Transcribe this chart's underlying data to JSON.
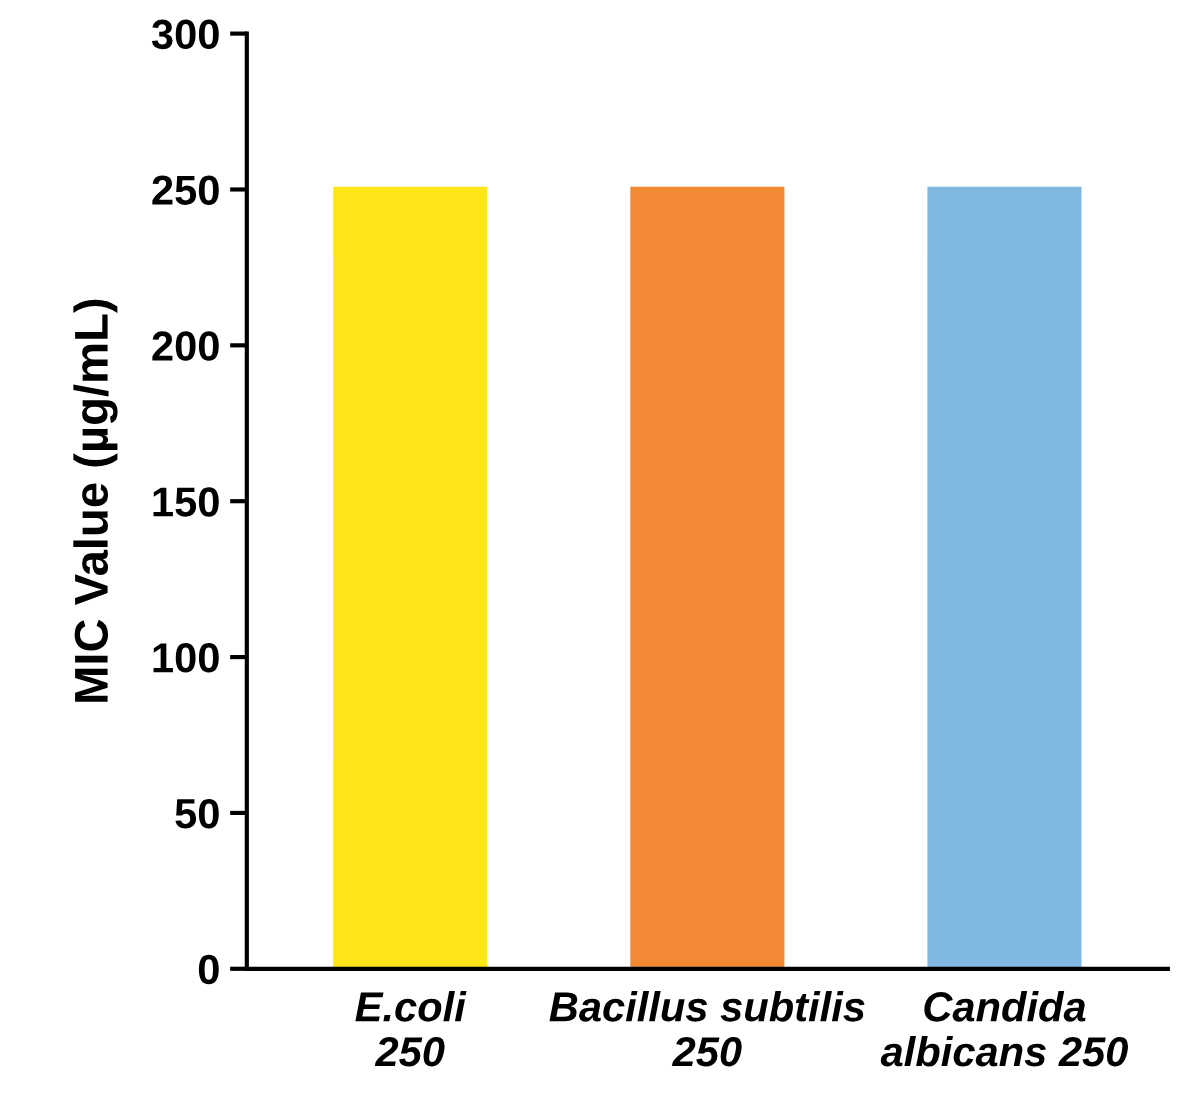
{
  "chart_data": {
    "type": "bar",
    "ylabel": "MIC Value (µg/mL)",
    "categories": [
      "E.coli\n250",
      "Bacillus subtilis\n250",
      "Candida\nalbicans 250"
    ],
    "values": [
      250,
      250,
      250
    ],
    "colors": [
      "#ffe619",
      "#f28a35",
      "#80b8e0"
    ],
    "ylim": [
      0,
      300
    ],
    "yticks": [
      0,
      50,
      100,
      150,
      200,
      250,
      300
    ],
    "grid": false,
    "legend": false
  }
}
